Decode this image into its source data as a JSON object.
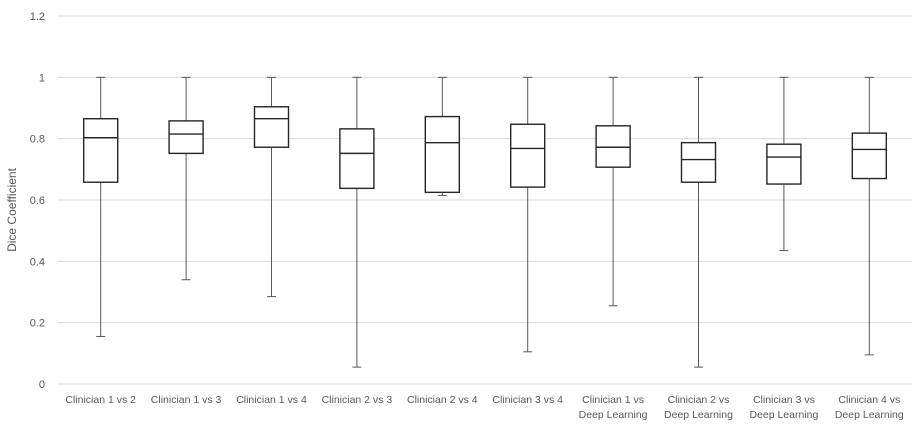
{
  "chart_data": {
    "type": "box",
    "ylabel": "Dice Coefficient",
    "ylim": [
      0,
      1.2
    ],
    "yticks": [
      0,
      0.2,
      0.4,
      0.6,
      0.8,
      1,
      1.2
    ],
    "ytick_labels": [
      "0",
      "0.2",
      "0.4",
      "0.6",
      "0.8",
      "1",
      "1.2"
    ],
    "grid": true,
    "categories": [
      [
        "Clinician 1 vs 2"
      ],
      [
        "Clinician 1 vs 3"
      ],
      [
        "Clinician 1 vs 4"
      ],
      [
        "Clinician 2 vs 3"
      ],
      [
        "Clinician 2 vs 4"
      ],
      [
        "Clinician 3 vs 4"
      ],
      [
        "Clinician 1 vs",
        "Deep Learning"
      ],
      [
        "Clinician 2 vs",
        "Deep Learning"
      ],
      [
        "Clinician 3 vs",
        "Deep Learning"
      ],
      [
        "Clinician 4 vs",
        "Deep Learning"
      ]
    ],
    "boxes": [
      {
        "min": 0.155,
        "q1": 0.658,
        "median": 0.803,
        "q3": 0.865,
        "max": 1.0
      },
      {
        "min": 0.34,
        "q1": 0.752,
        "median": 0.815,
        "q3": 0.858,
        "max": 1.0
      },
      {
        "min": 0.285,
        "q1": 0.772,
        "median": 0.865,
        "q3": 0.904,
        "max": 1.0
      },
      {
        "min": 0.055,
        "q1": 0.638,
        "median": 0.752,
        "q3": 0.832,
        "max": 1.0
      },
      {
        "min": 0.615,
        "q1": 0.625,
        "median": 0.787,
        "q3": 0.872,
        "max": 1.0
      },
      {
        "min": 0.105,
        "q1": 0.642,
        "median": 0.768,
        "q3": 0.847,
        "max": 1.0
      },
      {
        "min": 0.255,
        "q1": 0.707,
        "median": 0.772,
        "q3": 0.842,
        "max": 1.0
      },
      {
        "min": 0.055,
        "q1": 0.658,
        "median": 0.732,
        "q3": 0.787,
        "max": 1.0
      },
      {
        "min": 0.435,
        "q1": 0.652,
        "median": 0.74,
        "q3": 0.782,
        "max": 1.0
      },
      {
        "min": 0.095,
        "q1": 0.67,
        "median": 0.765,
        "q3": 0.818,
        "max": 1.0
      }
    ]
  }
}
